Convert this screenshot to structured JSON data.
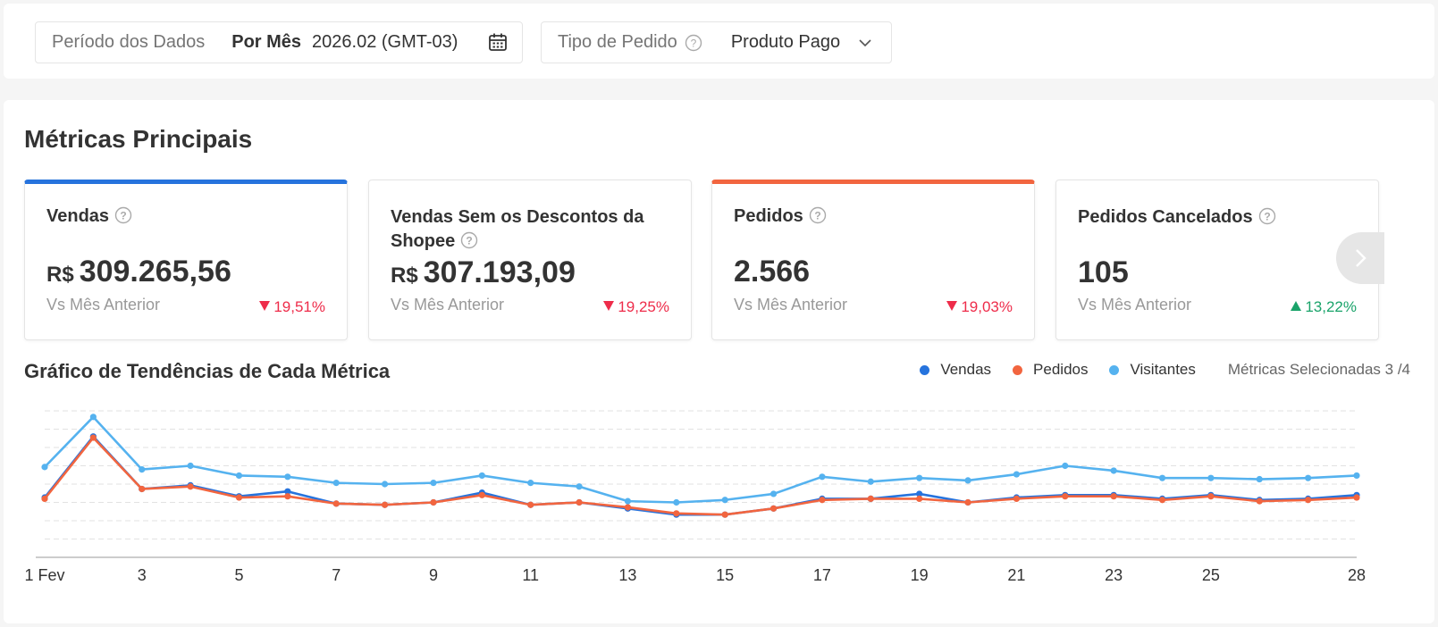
{
  "filters": {
    "period_label": "Período dos Dados",
    "period_mode": "Por Mês",
    "period_value": "2026.02 (GMT-03)",
    "order_type_label": "Tipo de Pedido",
    "order_type_value": "Produto Pago"
  },
  "main": {
    "title": "Métricas Principais",
    "currency": "R$",
    "cards": [
      {
        "title": "Vendas",
        "value": "309.265,56",
        "compare": "Vs Mês Anterior",
        "change": "19,51%",
        "trend": "down",
        "selected": true,
        "accent": "#2673dd"
      },
      {
        "title": "Vendas Sem os Descontos da Shopee",
        "value": "307.193,09",
        "compare": "Vs Mês Anterior",
        "change": "19,25%",
        "trend": "down",
        "selected": false
      },
      {
        "title": "Pedidos",
        "value": "2.566",
        "compare": "Vs Mês Anterior",
        "change": "19,03%",
        "trend": "down",
        "selected": true,
        "accent": "#f2653f"
      },
      {
        "title": "Pedidos Cancelados",
        "value": "105",
        "compare": "Vs Mês Anterior",
        "change": "13,22%",
        "trend": "up",
        "selected": false
      }
    ]
  },
  "trend": {
    "title": "Gráfico de Tendências de Cada Métrica",
    "selected_metrics": "Métricas Selecionadas 3 /4"
  },
  "chart_data": {
    "type": "line",
    "x": [
      1,
      2,
      3,
      4,
      5,
      6,
      7,
      8,
      9,
      10,
      11,
      12,
      13,
      14,
      15,
      16,
      17,
      18,
      19,
      20,
      21,
      22,
      23,
      24,
      25,
      26,
      27,
      28
    ],
    "x_tick_labels": [
      "1 Fev",
      "3",
      "5",
      "7",
      "9",
      "11",
      "13",
      "15",
      "17",
      "19",
      "21",
      "23",
      "25",
      "28"
    ],
    "x_tick_values": [
      1,
      3,
      5,
      7,
      9,
      11,
      13,
      15,
      17,
      19,
      21,
      23,
      25,
      28
    ],
    "y_gridlines": 8,
    "grid": true,
    "legend_position": "top-right",
    "series": [
      {
        "name": "Vendas",
        "color": "#2673dd",
        "values": [
          49,
          99,
          56,
          59,
          50,
          54,
          44,
          43,
          45,
          53,
          43,
          45,
          40,
          35,
          35,
          40,
          48,
          48,
          52,
          45,
          49,
          51,
          51,
          48,
          51,
          47,
          48,
          51
        ]
      },
      {
        "name": "Pedidos",
        "color": "#f2653f",
        "values": [
          48,
          98,
          56,
          58,
          49,
          50,
          44,
          43,
          45,
          51,
          43,
          45,
          41,
          36,
          35,
          40,
          47,
          48,
          48,
          45,
          48,
          50,
          50,
          47,
          50,
          46,
          47,
          49
        ]
      },
      {
        "name": "Visitantes",
        "color": "#55b2ef",
        "values": [
          74,
          115,
          72,
          75,
          67,
          66,
          61,
          60,
          61,
          67,
          61,
          58,
          46,
          45,
          47,
          52,
          66,
          62,
          65,
          63,
          68,
          75,
          71,
          65,
          65,
          64,
          65,
          67
        ]
      }
    ]
  }
}
